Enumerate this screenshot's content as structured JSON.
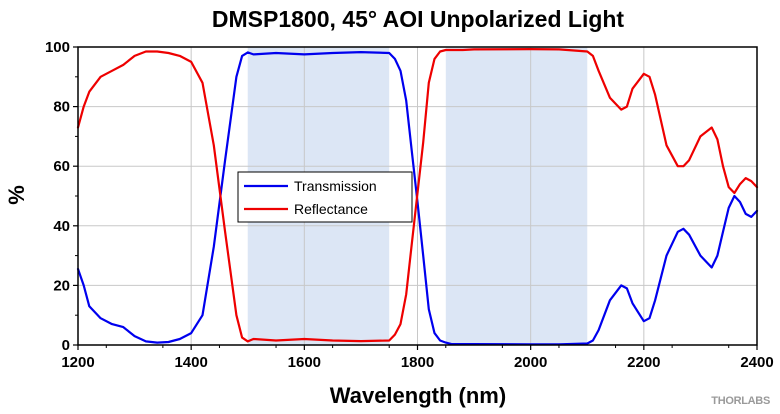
{
  "brand": "THORLABS",
  "chart_data": {
    "type": "line",
    "title": "DMSP1800, 45° AOI Unpolarized Light",
    "xlabel": "Wavelength (nm)",
    "ylabel": "%",
    "xlim": [
      1200,
      2400
    ],
    "ylim": [
      0,
      100
    ],
    "x_ticks": [
      "1200",
      "1400",
      "1600",
      "1800",
      "2000",
      "2200",
      "2400"
    ],
    "y_ticks": [
      "0",
      "20",
      "40",
      "60",
      "80",
      "100"
    ],
    "grid": true,
    "legend_position": "center-left",
    "shaded_regions": [
      {
        "x_start": 1500,
        "x_end": 1750,
        "color": "#dce6f5"
      },
      {
        "x_start": 1850,
        "x_end": 2100,
        "color": "#dce6f5"
      }
    ],
    "series": [
      {
        "name": "Transmission",
        "color": "#0000ee",
        "x": [
          1200,
          1210,
          1220,
          1240,
          1260,
          1280,
          1290,
          1300,
          1320,
          1340,
          1360,
          1380,
          1400,
          1420,
          1440,
          1460,
          1480,
          1490,
          1500,
          1510,
          1550,
          1600,
          1650,
          1700,
          1750,
          1760,
          1770,
          1780,
          1790,
          1800,
          1810,
          1820,
          1830,
          1840,
          1850,
          1860,
          1880,
          1900,
          2000,
          2050,
          2100,
          2110,
          2120,
          2140,
          2160,
          2170,
          2180,
          2200,
          2210,
          2220,
          2240,
          2260,
          2270,
          2280,
          2300,
          2320,
          2330,
          2340,
          2350,
          2360,
          2370,
          2380,
          2390,
          2400
        ],
        "y": [
          25.5,
          20,
          13,
          9,
          7,
          6,
          4.5,
          3,
          1.2,
          0.8,
          1,
          2,
          4,
          10,
          33,
          62,
          90,
          97,
          98.2,
          97.5,
          98,
          97.5,
          98,
          98.3,
          98,
          96,
          92,
          82,
          65,
          48,
          30,
          12,
          4,
          1.5,
          0.8,
          0.3,
          0.3,
          0.3,
          0.2,
          0.2,
          0.5,
          1.5,
          5,
          15,
          20,
          19,
          14,
          8,
          9,
          15,
          30,
          38,
          39,
          37,
          30,
          26,
          30,
          38,
          46,
          50,
          48,
          44,
          43,
          45
        ]
      },
      {
        "name": "Reflectance",
        "color": "#ee0000",
        "x": [
          1200,
          1210,
          1220,
          1240,
          1260,
          1280,
          1290,
          1300,
          1320,
          1340,
          1360,
          1380,
          1400,
          1420,
          1440,
          1460,
          1480,
          1490,
          1500,
          1510,
          1550,
          1600,
          1650,
          1700,
          1750,
          1760,
          1770,
          1780,
          1790,
          1800,
          1810,
          1820,
          1830,
          1840,
          1850,
          1860,
          1880,
          1900,
          2000,
          2050,
          2100,
          2110,
          2120,
          2140,
          2160,
          2170,
          2180,
          2200,
          2210,
          2220,
          2240,
          2260,
          2270,
          2280,
          2300,
          2320,
          2330,
          2340,
          2350,
          2360,
          2370,
          2380,
          2390,
          2400
        ],
        "y": [
          73,
          80,
          85,
          90,
          92,
          94,
          95.5,
          97,
          98.5,
          98.5,
          98,
          97,
          95,
          88,
          67,
          38,
          10,
          2.5,
          1.2,
          2,
          1.5,
          2,
          1.5,
          1.3,
          1.5,
          3.5,
          7,
          17,
          34,
          51,
          68,
          88,
          96,
          98.5,
          99,
          99,
          99,
          99.2,
          99.3,
          99.2,
          98.5,
          97,
          92,
          83,
          79,
          80,
          86,
          91,
          90,
          84,
          67,
          60,
          60,
          62,
          70,
          73,
          69,
          60,
          53,
          51,
          54,
          56,
          55,
          53
        ]
      }
    ]
  }
}
